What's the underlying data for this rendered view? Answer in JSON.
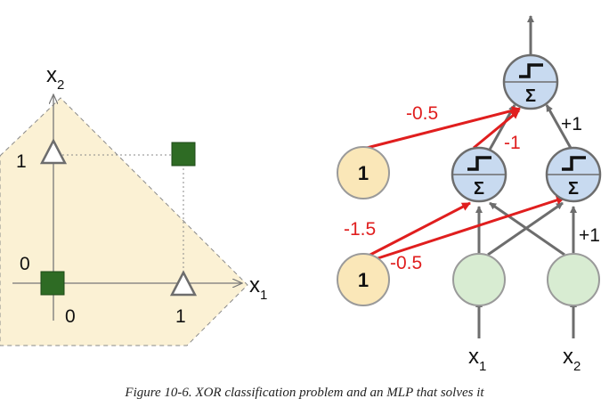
{
  "left_plot": {
    "axis_x_label": "x",
    "axis_x_sub": "1",
    "axis_y_label": "x",
    "axis_y_sub": "2",
    "tick_x0": "0",
    "tick_x1": "1",
    "tick_y0": "0",
    "tick_y1": "1",
    "points": [
      {
        "x1": 0,
        "x2": 0,
        "class": "square"
      },
      {
        "x1": 1,
        "x2": 1,
        "class": "square"
      },
      {
        "x1": 0,
        "x2": 1,
        "class": "triangle"
      },
      {
        "x1": 1,
        "x2": 0,
        "class": "triangle"
      }
    ]
  },
  "network": {
    "bias_label_top": "1",
    "bias_label_bottom": "1",
    "weight_top_bias": "-0.5",
    "weight_hidden_left": "-1",
    "weight_hidden_right": "+1",
    "weight_bias_left": "-1.5",
    "weight_bias_right": "-0.5",
    "weight_input_right": "+1",
    "input1_label": "x",
    "input1_sub": "1",
    "input2_label": "x",
    "input2_sub": "2",
    "sum_symbol": "Σ"
  },
  "colors": {
    "region_fill": "#fbf1d4",
    "square_fill": "#2e6b24",
    "neuron_fill": "#c8daf0",
    "bias_fill": "#fae7b8",
    "input_fill": "#d8ecd2",
    "red": "#e01e1e",
    "gray": "#6d6d6d"
  },
  "caption": "Figure 10-6. XOR classification problem and an MLP that solves it"
}
